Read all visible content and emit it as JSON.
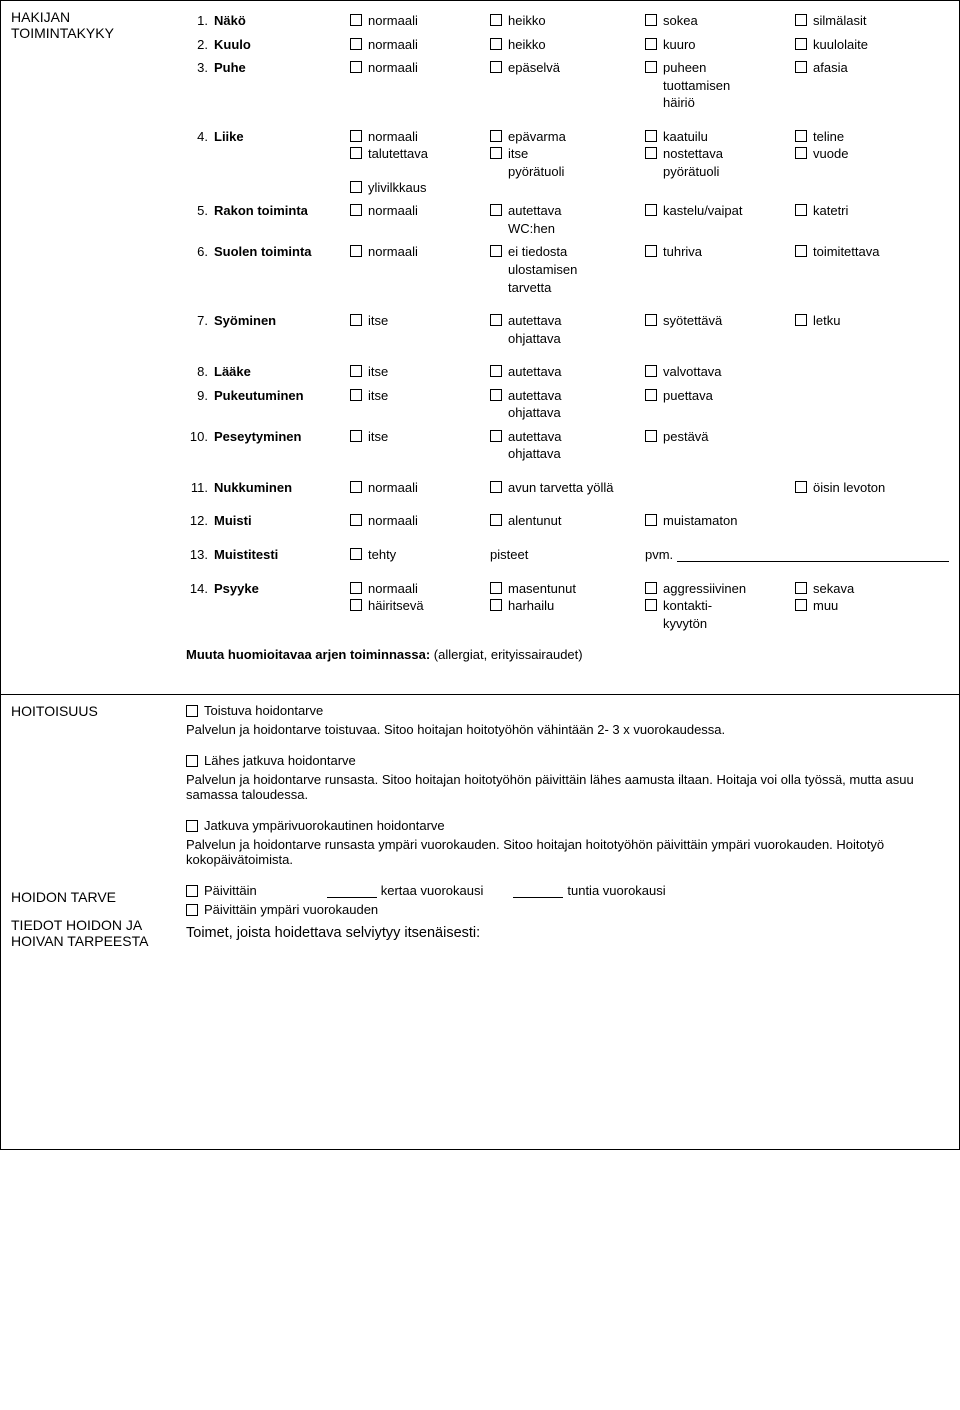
{
  "toimintakyky": {
    "title": "HAKIJAN TOIMINTAKYKY",
    "rows": [
      {
        "num": "1.",
        "label": "Näkö",
        "cols": [
          [
            "normaali"
          ],
          [
            "heikko"
          ],
          [
            "sokea"
          ],
          [
            "silmälasit"
          ]
        ]
      },
      {
        "num": "2.",
        "label": "Kuulo",
        "cols": [
          [
            "normaali"
          ],
          [
            "heikko"
          ],
          [
            "kuuro"
          ],
          [
            "kuulolaite"
          ]
        ]
      },
      {
        "num": "3.",
        "label": "Puhe",
        "cols": [
          [
            "normaali"
          ],
          [
            "epäselvä"
          ],
          [
            "puheen",
            "tuottamisen",
            "häiriö"
          ],
          [
            "afasia"
          ]
        ]
      },
      {
        "num": "4.",
        "label": "Liike",
        "cols": [
          [
            "normaali",
            "talutettava",
            "",
            "ylivilkkaus"
          ],
          [
            "epävarma",
            "itse",
            "pyörätuoli"
          ],
          [
            "kaatuilu",
            "nostettava",
            "pyörätuoli"
          ],
          [
            "teline",
            "vuode"
          ]
        ]
      },
      {
        "num": "5.",
        "label": "Rakon toiminta",
        "cols": [
          [
            "normaali"
          ],
          [
            "autettava",
            "WC:hen"
          ],
          [
            "kastelu/vaipat"
          ],
          [
            "katetri"
          ]
        ]
      },
      {
        "num": "6.",
        "label": "Suolen toiminta",
        "cols": [
          [
            "normaali"
          ],
          [
            "ei tiedosta",
            "ulostamisen",
            "tarvetta"
          ],
          [
            "tuhriva"
          ],
          [
            "toimitettava"
          ]
        ]
      },
      {
        "num": "7.",
        "label": "Syöminen",
        "cols": [
          [
            "itse"
          ],
          [
            "autettava",
            "ohjattava"
          ],
          [
            "syötettävä"
          ],
          [
            "letku"
          ]
        ]
      },
      {
        "num": "8.",
        "label": "Lääke",
        "cols": [
          [
            "itse"
          ],
          [
            "autettava"
          ],
          [
            "valvottava"
          ],
          []
        ]
      },
      {
        "num": "9.",
        "label": "Pukeutuminen",
        "cols": [
          [
            "itse"
          ],
          [
            "autettava",
            "ohjattava"
          ],
          [
            "puettava"
          ],
          []
        ]
      },
      {
        "num": "10.",
        "label": "Peseytyminen",
        "cols": [
          [
            "itse"
          ],
          [
            "autettava",
            "ohjattava"
          ],
          [
            "pestävä"
          ],
          []
        ]
      },
      {
        "num": "11.",
        "label": "Nukkuminen",
        "cols": [
          [
            "normaali"
          ],
          [
            "avun tarvetta yöllä"
          ],
          [],
          [
            "öisin levoton"
          ]
        ],
        "c2wide": true
      },
      {
        "num": "12.",
        "label": "Muisti",
        "cols": [
          [
            "normaali"
          ],
          [
            "alentunut"
          ],
          [
            "muistamaton"
          ],
          []
        ]
      },
      {
        "num": "13.",
        "label": "Muistitesti",
        "cols": [
          [
            "tehty"
          ],
          [],
          [],
          []
        ],
        "pisteet": "pisteet",
        "pvm": "pvm."
      },
      {
        "num": "14.",
        "label": "Psyyke",
        "cols": [
          [
            "normaali",
            "häiritsevä"
          ],
          [
            "masentunut",
            "harhailu"
          ],
          [
            "aggressiivinen",
            "kontakti-",
            "kyvytön"
          ],
          [
            "sekava",
            "muu"
          ]
        ]
      }
    ],
    "note_bold": "Muuta huomioitavaa arjen toiminnassa:",
    "note_rest": " (allergiat, erityissairaudet)"
  },
  "hoitoisuus": {
    "title": "HOITOISUUS",
    "blocks": [
      {
        "cb": "Toistuva hoidontarve",
        "text": "Palvelun ja hoidontarve toistuvaa. Sitoo hoitajan hoitotyöhön vähintään 2- 3 x vuorokaudessa."
      },
      {
        "cb": "Lähes jatkuva hoidontarve",
        "text": "Palvelun ja hoidontarve runsasta. Sitoo hoitajan hoitotyöhön päivittäin lähes aamusta iltaan. Hoitaja voi olla työssä, mutta asuu samassa taloudessa."
      },
      {
        "cb": "Jatkuva ympärivuorokautinen hoidontarve",
        "text": "Palvelun ja hoidontarve runsasta ympäri vuorokauden. Sitoo hoitajan hoitotyöhön päivittäin ympäri vuorokauden. Hoitotyö kokopäivätoimista."
      }
    ]
  },
  "hoidontarve": {
    "title": "HOIDON TARVE",
    "line1_cb": "Päivittäin",
    "line1_part1": "kertaa vuorokausi",
    "line1_part2": "tuntia vuorokausi",
    "line2_cb": "Päivittäin ympäri vuorokauden"
  },
  "tiedot": {
    "title": "TIEDOT HOIDON JA HOIVAN TARPEESTA",
    "heading": "Toimet, joista hoidettava selviytyy itsenäisesti:"
  }
}
